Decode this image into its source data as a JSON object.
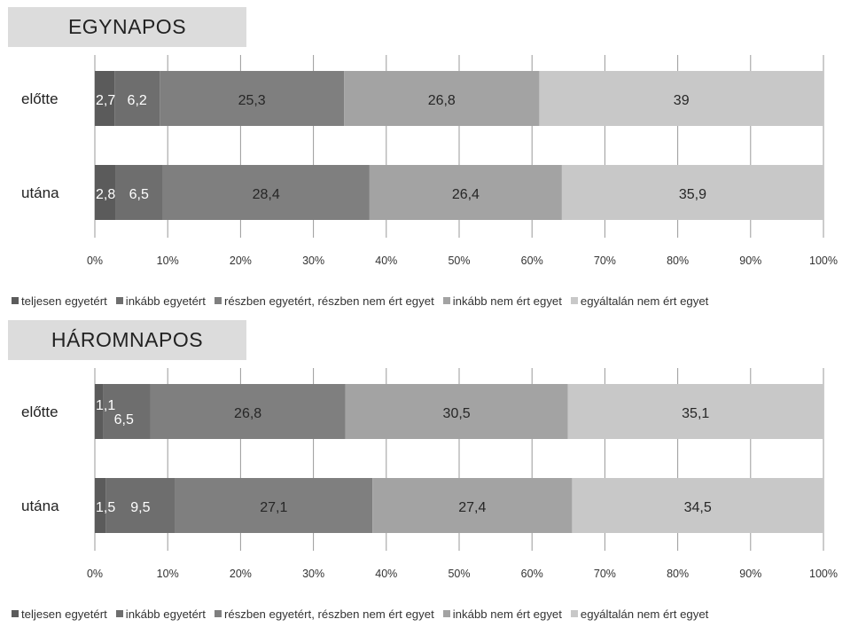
{
  "chart_data": [
    {
      "type": "bar",
      "orientation": "horizontal",
      "stacked": true,
      "title": "EGYNAPOS",
      "categories": [
        "előtte",
        "utána"
      ],
      "series": [
        {
          "name": "teljesen egyetért",
          "values": [
            2.7,
            2.8
          ],
          "labels": [
            "2,7",
            "2,8"
          ],
          "color": "#5b5b5b"
        },
        {
          "name": "inkább egyetért",
          "values": [
            6.2,
            6.5
          ],
          "labels": [
            "6,2",
            "6,5"
          ],
          "color": "#6e6e6e"
        },
        {
          "name": "részben egyetért, részben nem ért egyet",
          "values": [
            25.3,
            28.4
          ],
          "labels": [
            "25,3",
            "28,4"
          ],
          "color": "#7f7f7f"
        },
        {
          "name": "inkább nem ért egyet",
          "values": [
            26.8,
            26.4
          ],
          "labels": [
            "26,8",
            "26,4"
          ],
          "color": "#a3a3a3"
        },
        {
          "name": "egyáltalán nem ért egyet",
          "values": [
            39,
            35.9
          ],
          "labels": [
            "39",
            "35,9"
          ],
          "color": "#c8c8c8"
        }
      ],
      "xlim": [
        0,
        100
      ],
      "xticks": [
        "0%",
        "10%",
        "20%",
        "30%",
        "40%",
        "50%",
        "60%",
        "70%",
        "80%",
        "90%",
        "100%"
      ],
      "grid": "vertical",
      "legend_position": "bottom"
    },
    {
      "type": "bar",
      "orientation": "horizontal",
      "stacked": true,
      "title": "HÁROMNAPOS",
      "categories": [
        "előtte",
        "utána"
      ],
      "series": [
        {
          "name": "teljesen egyetért",
          "values": [
            1.1,
            1.5
          ],
          "labels": [
            "1,1",
            "1,5"
          ],
          "color": "#5b5b5b"
        },
        {
          "name": "inkább egyetért",
          "values": [
            6.5,
            9.5
          ],
          "labels": [
            "6,5",
            "9,5"
          ],
          "color": "#6e6e6e"
        },
        {
          "name": "részben egyetért, részben nem ért egyet",
          "values": [
            26.8,
            27.1
          ],
          "labels": [
            "26,8",
            "27,1"
          ],
          "color": "#7f7f7f"
        },
        {
          "name": "inkább nem ért egyet",
          "values": [
            30.5,
            27.4
          ],
          "labels": [
            "30,5",
            "27,4"
          ],
          "color": "#a3a3a3"
        },
        {
          "name": "egyáltalán nem ért egyet",
          "values": [
            35.1,
            34.5
          ],
          "labels": [
            "35,1",
            "34,5"
          ],
          "color": "#c8c8c8"
        }
      ],
      "xlim": [
        0,
        100
      ],
      "xticks": [
        "0%",
        "10%",
        "20%",
        "30%",
        "40%",
        "50%",
        "60%",
        "70%",
        "80%",
        "90%",
        "100%"
      ],
      "grid": "vertical",
      "legend_position": "bottom"
    }
  ]
}
